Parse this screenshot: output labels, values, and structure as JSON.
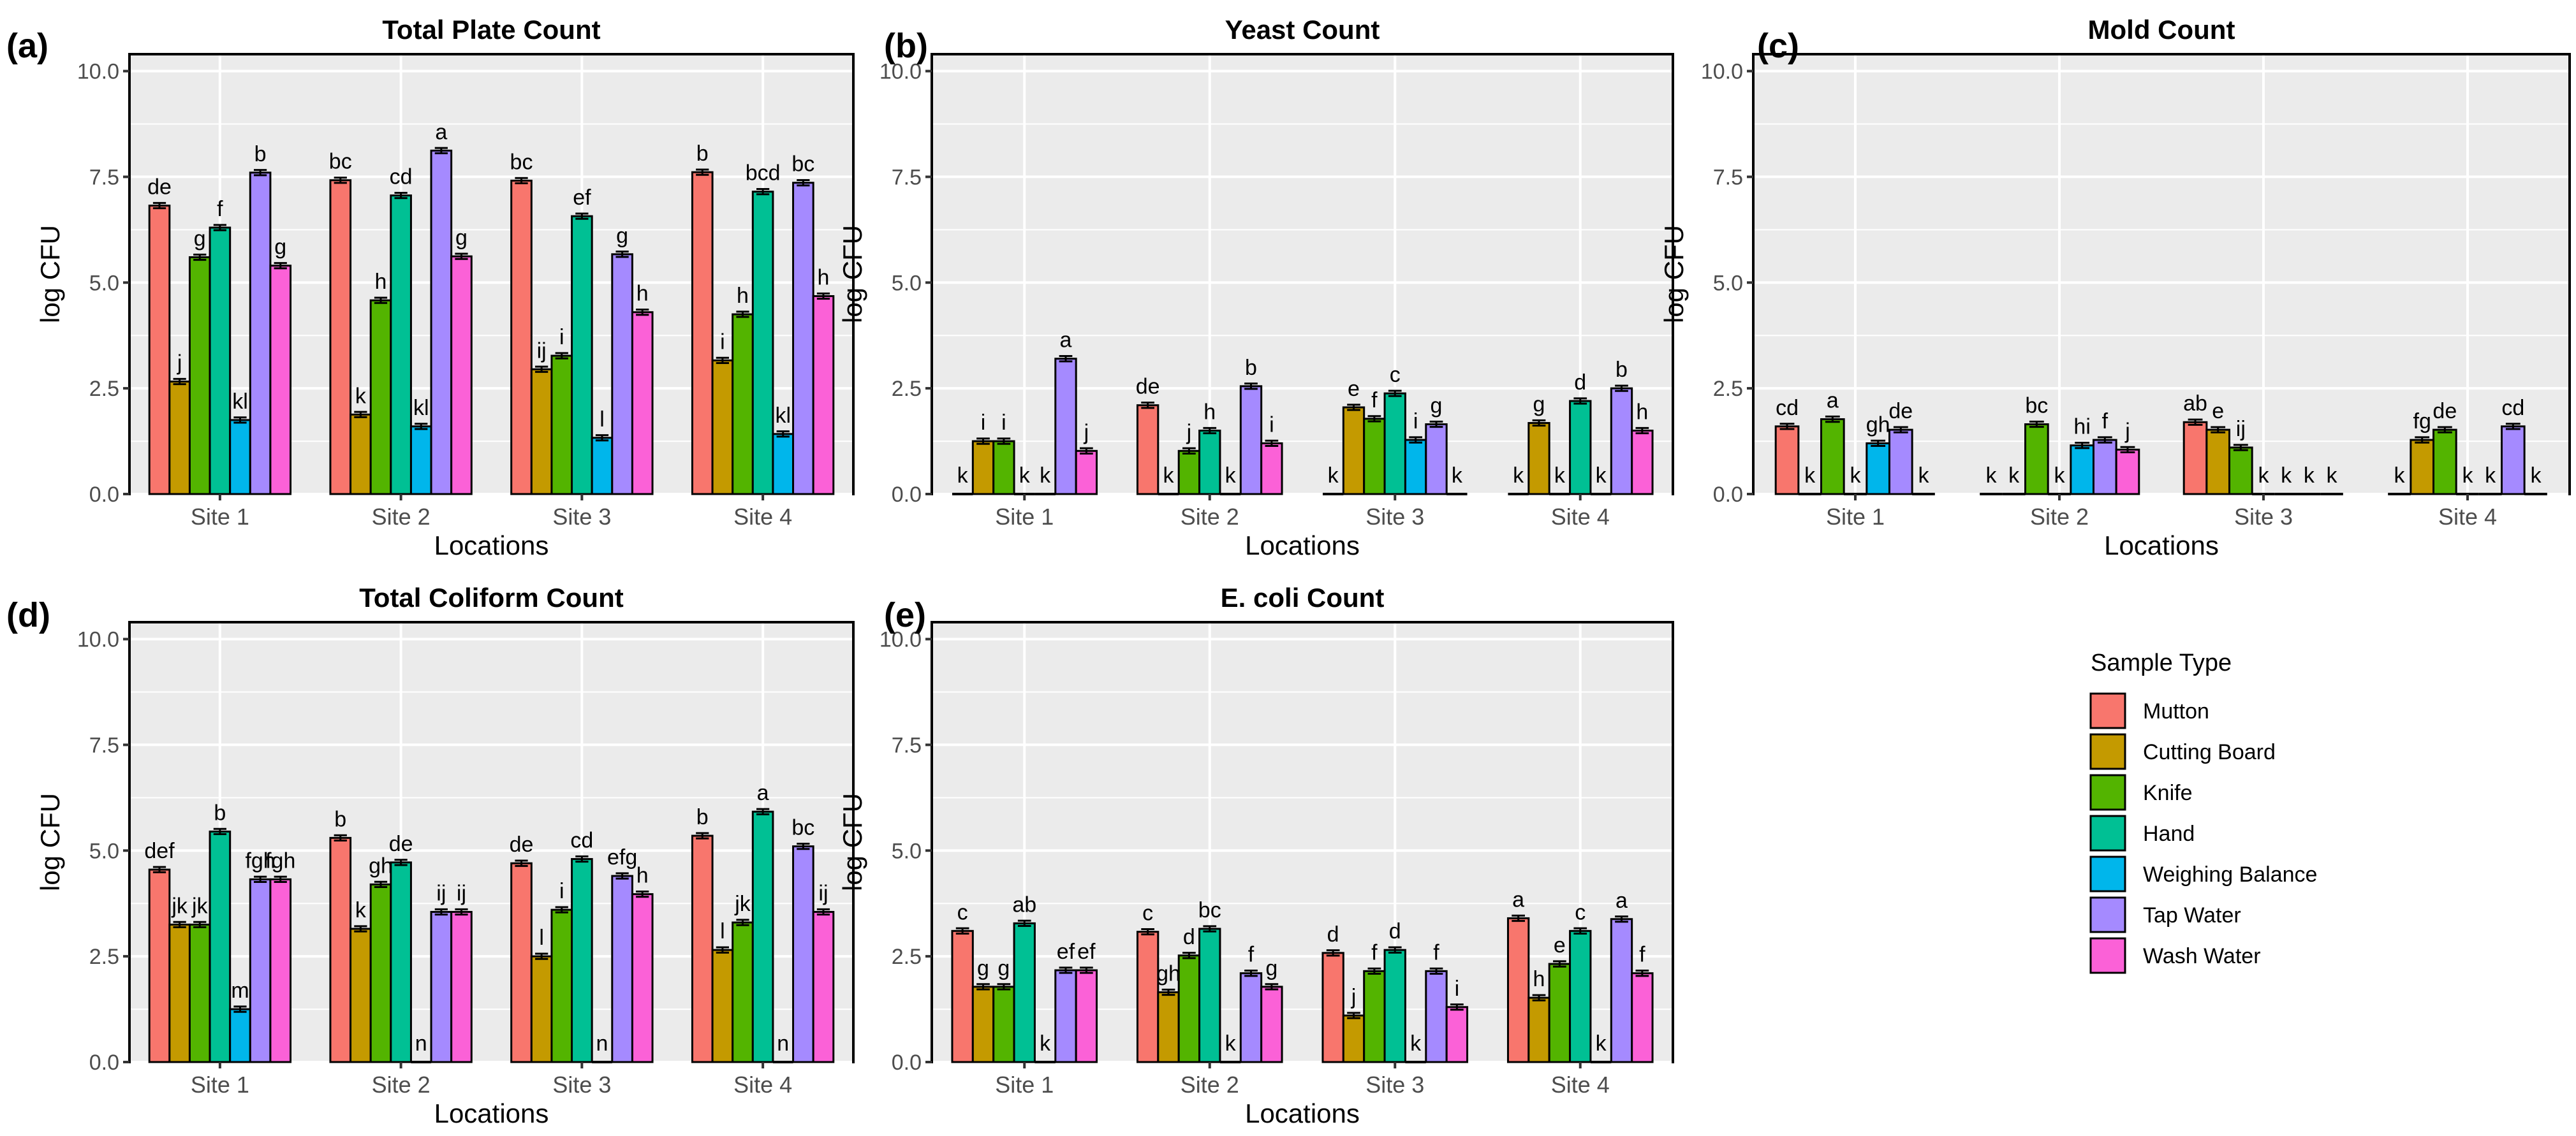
{
  "colors": {
    "Mutton": "#F8766D",
    "Cutting Board": "#C49A00",
    "Knife": "#53B400",
    "Hand": "#00C094",
    "Weighing Balance": "#00B6EB",
    "Tap Water": "#A58AFF",
    "Wash Water": "#FB61D7"
  },
  "legend": {
    "title": "Sample Type",
    "items": [
      "Mutton",
      "Cutting Board",
      "Knife",
      "Hand",
      "Weighing Balance",
      "Tap Water",
      "Wash Water"
    ]
  },
  "chart_data": [
    {
      "panel": "(a)",
      "title": "Total Plate Count",
      "type": "bar",
      "xlabel": "Locations",
      "ylabel": "log CFU",
      "ylim": [
        0,
        10.4
      ],
      "yticks": [
        "0.0",
        "2.5",
        "5.0",
        "7.5",
        "10.0"
      ],
      "grid": true,
      "categories": [
        "Site 1",
        "Site 2",
        "Site 3",
        "Site 4"
      ],
      "series": [
        {
          "name": "Mutton",
          "values": [
            6.82,
            7.42,
            7.41,
            7.61
          ],
          "letters": [
            "de",
            "bc",
            "bc",
            "b"
          ]
        },
        {
          "name": "Cutting Board",
          "values": [
            2.66,
            1.88,
            2.95,
            3.16
          ],
          "letters": [
            "j",
            "k",
            "ij",
            "i"
          ]
        },
        {
          "name": "Knife",
          "values": [
            5.6,
            4.58,
            3.27,
            4.25
          ],
          "letters": [
            "g",
            "h",
            "i",
            "h"
          ]
        },
        {
          "name": "Hand",
          "values": [
            6.3,
            7.06,
            6.57,
            7.15
          ],
          "letters": [
            "f",
            "cd",
            "ef",
            "bcd"
          ]
        },
        {
          "name": "Weighing Balance",
          "values": [
            1.75,
            1.6,
            1.33,
            1.42
          ],
          "letters": [
            "kl",
            "kl",
            "l",
            "kl"
          ]
        },
        {
          "name": "Tap Water",
          "values": [
            7.6,
            8.12,
            5.67,
            7.36
          ],
          "letters": [
            "b",
            "a",
            "g",
            "bc"
          ]
        },
        {
          "name": "Wash Water",
          "values": [
            5.4,
            5.62,
            4.3,
            4.68
          ],
          "letters": [
            "g",
            "g",
            "h",
            "h"
          ]
        }
      ]
    },
    {
      "panel": "(b)",
      "title": "Yeast Count",
      "type": "bar",
      "xlabel": "Locations",
      "ylabel": "log CFU",
      "ylim": [
        0,
        10.4
      ],
      "yticks": [
        "0.0",
        "2.5",
        "5.0",
        "7.5",
        "10.0"
      ],
      "grid": true,
      "categories": [
        "Site 1",
        "Site 2",
        "Site 3",
        "Site 4"
      ],
      "series": [
        {
          "name": "Mutton",
          "values": [
            0,
            2.1,
            0,
            0
          ],
          "letters": [
            "k",
            "de",
            "k",
            "k"
          ]
        },
        {
          "name": "Cutting Board",
          "values": [
            1.25,
            0,
            2.05,
            1.68
          ],
          "letters": [
            "i",
            "k",
            "e",
            "g"
          ]
        },
        {
          "name": "Knife",
          "values": [
            1.25,
            1.02,
            1.78,
            0
          ],
          "letters": [
            "i",
            "j",
            "f",
            "k"
          ]
        },
        {
          "name": "Hand",
          "values": [
            0,
            1.5,
            2.38,
            2.2
          ],
          "letters": [
            "k",
            "h",
            "c",
            "d"
          ]
        },
        {
          "name": "Weighing Balance",
          "values": [
            0,
            0,
            1.28,
            0
          ],
          "letters": [
            "k",
            "k",
            "i",
            "k"
          ]
        },
        {
          "name": "Tap Water",
          "values": [
            3.2,
            2.55,
            1.65,
            2.5
          ],
          "letters": [
            "a",
            "b",
            "g",
            "b"
          ]
        },
        {
          "name": "Wash Water",
          "values": [
            1.02,
            1.2,
            0,
            1.5
          ],
          "letters": [
            "j",
            "i",
            "k",
            "h"
          ]
        }
      ]
    },
    {
      "panel": "(c)",
      "title": "Mold Count",
      "type": "bar",
      "xlabel": "Locations",
      "ylabel": "log CFU",
      "ylim": [
        0,
        10.4
      ],
      "yticks": [
        "0.0",
        "2.5",
        "5.0",
        "7.5",
        "10.0"
      ],
      "grid": true,
      "categories": [
        "Site 1",
        "Site 2",
        "Site 3",
        "Site 4"
      ],
      "series": [
        {
          "name": "Mutton",
          "values": [
            1.6,
            0,
            1.7,
            0
          ],
          "letters": [
            "cd",
            "k",
            "ab",
            "k"
          ]
        },
        {
          "name": "Cutting Board",
          "values": [
            0,
            0,
            1.52,
            1.28
          ],
          "letters": [
            "k",
            "k",
            "e",
            "fg"
          ]
        },
        {
          "name": "Knife",
          "values": [
            1.77,
            1.65,
            1.1,
            1.52
          ],
          "letters": [
            "a",
            "bc",
            "ij",
            "de"
          ]
        },
        {
          "name": "Hand",
          "values": [
            0,
            0,
            0,
            0
          ],
          "letters": [
            "k",
            "k",
            "k",
            "k"
          ]
        },
        {
          "name": "Weighing Balance",
          "values": [
            1.2,
            1.15,
            0,
            0
          ],
          "letters": [
            "gh",
            "hi",
            "k",
            "k"
          ]
        },
        {
          "name": "Tap Water",
          "values": [
            1.52,
            1.28,
            0,
            1.6
          ],
          "letters": [
            "de",
            "f",
            "k",
            "cd"
          ]
        },
        {
          "name": "Wash Water",
          "values": [
            0,
            1.05,
            0,
            0
          ],
          "letters": [
            "k",
            "j",
            "k",
            "k"
          ]
        }
      ]
    },
    {
      "panel": "(d)",
      "title": "Total Coliform Count",
      "type": "bar",
      "xlabel": "Locations",
      "ylabel": "log CFU",
      "ylim": [
        0,
        10.4
      ],
      "yticks": [
        "0.0",
        "2.5",
        "5.0",
        "7.5",
        "10.0"
      ],
      "grid": true,
      "categories": [
        "Site 1",
        "Site 2",
        "Site 3",
        "Site 4"
      ],
      "series": [
        {
          "name": "Mutton",
          "values": [
            4.55,
            5.3,
            4.7,
            5.35
          ],
          "letters": [
            "def",
            "b",
            "de",
            "b"
          ]
        },
        {
          "name": "Cutting Board",
          "values": [
            3.25,
            3.15,
            2.5,
            2.65
          ],
          "letters": [
            "jk",
            "k",
            "l",
            "l"
          ]
        },
        {
          "name": "Knife",
          "values": [
            3.25,
            4.2,
            3.6,
            3.3
          ],
          "letters": [
            "jk",
            "gh",
            "i",
            "jk"
          ]
        },
        {
          "name": "Hand",
          "values": [
            5.45,
            4.72,
            4.8,
            5.92
          ],
          "letters": [
            "b",
            "de",
            "cd",
            "a"
          ]
        },
        {
          "name": "Weighing Balance",
          "values": [
            1.25,
            0,
            0,
            0
          ],
          "letters": [
            "m",
            "n",
            "n",
            "n"
          ]
        },
        {
          "name": "Tap Water",
          "values": [
            4.32,
            3.55,
            4.4,
            5.1
          ],
          "letters": [
            "fgh",
            "ij",
            "efg",
            "bc"
          ]
        },
        {
          "name": "Wash Water",
          "values": [
            4.32,
            3.55,
            3.97,
            3.55
          ],
          "letters": [
            "fgh",
            "ij",
            "h",
            "ij"
          ]
        }
      ]
    },
    {
      "panel": "(e)",
      "title": "E. coli Count",
      "type": "bar",
      "xlabel": "Locations",
      "ylabel": "log CFU",
      "ylim": [
        0,
        10.4
      ],
      "yticks": [
        "0.0",
        "2.5",
        "5.0",
        "7.5",
        "10.0"
      ],
      "grid": true,
      "categories": [
        "Site 1",
        "Site 2",
        "Site 3",
        "Site 4"
      ],
      "series": [
        {
          "name": "Mutton",
          "values": [
            3.1,
            3.08,
            2.58,
            3.4
          ],
          "letters": [
            "c",
            "c",
            "d",
            "a"
          ]
        },
        {
          "name": "Cutting Board",
          "values": [
            1.78,
            1.65,
            1.1,
            1.52
          ],
          "letters": [
            "g",
            "gh",
            "j",
            "h"
          ]
        },
        {
          "name": "Knife",
          "values": [
            1.78,
            2.52,
            2.15,
            2.32
          ],
          "letters": [
            "g",
            "d",
            "f",
            "e"
          ]
        },
        {
          "name": "Hand",
          "values": [
            3.28,
            3.15,
            2.65,
            3.1
          ],
          "letters": [
            "ab",
            "bc",
            "d",
            "c"
          ]
        },
        {
          "name": "Weighing Balance",
          "values": [
            0,
            0,
            0,
            0
          ],
          "letters": [
            "k",
            "k",
            "k",
            "k"
          ]
        },
        {
          "name": "Tap Water",
          "values": [
            2.17,
            2.1,
            2.15,
            3.38
          ],
          "letters": [
            "ef",
            "f",
            "f",
            "a"
          ]
        },
        {
          "name": "Wash Water",
          "values": [
            2.17,
            1.78,
            1.3,
            2.1
          ],
          "letters": [
            "ef",
            "g",
            "i",
            "f"
          ]
        }
      ]
    }
  ]
}
